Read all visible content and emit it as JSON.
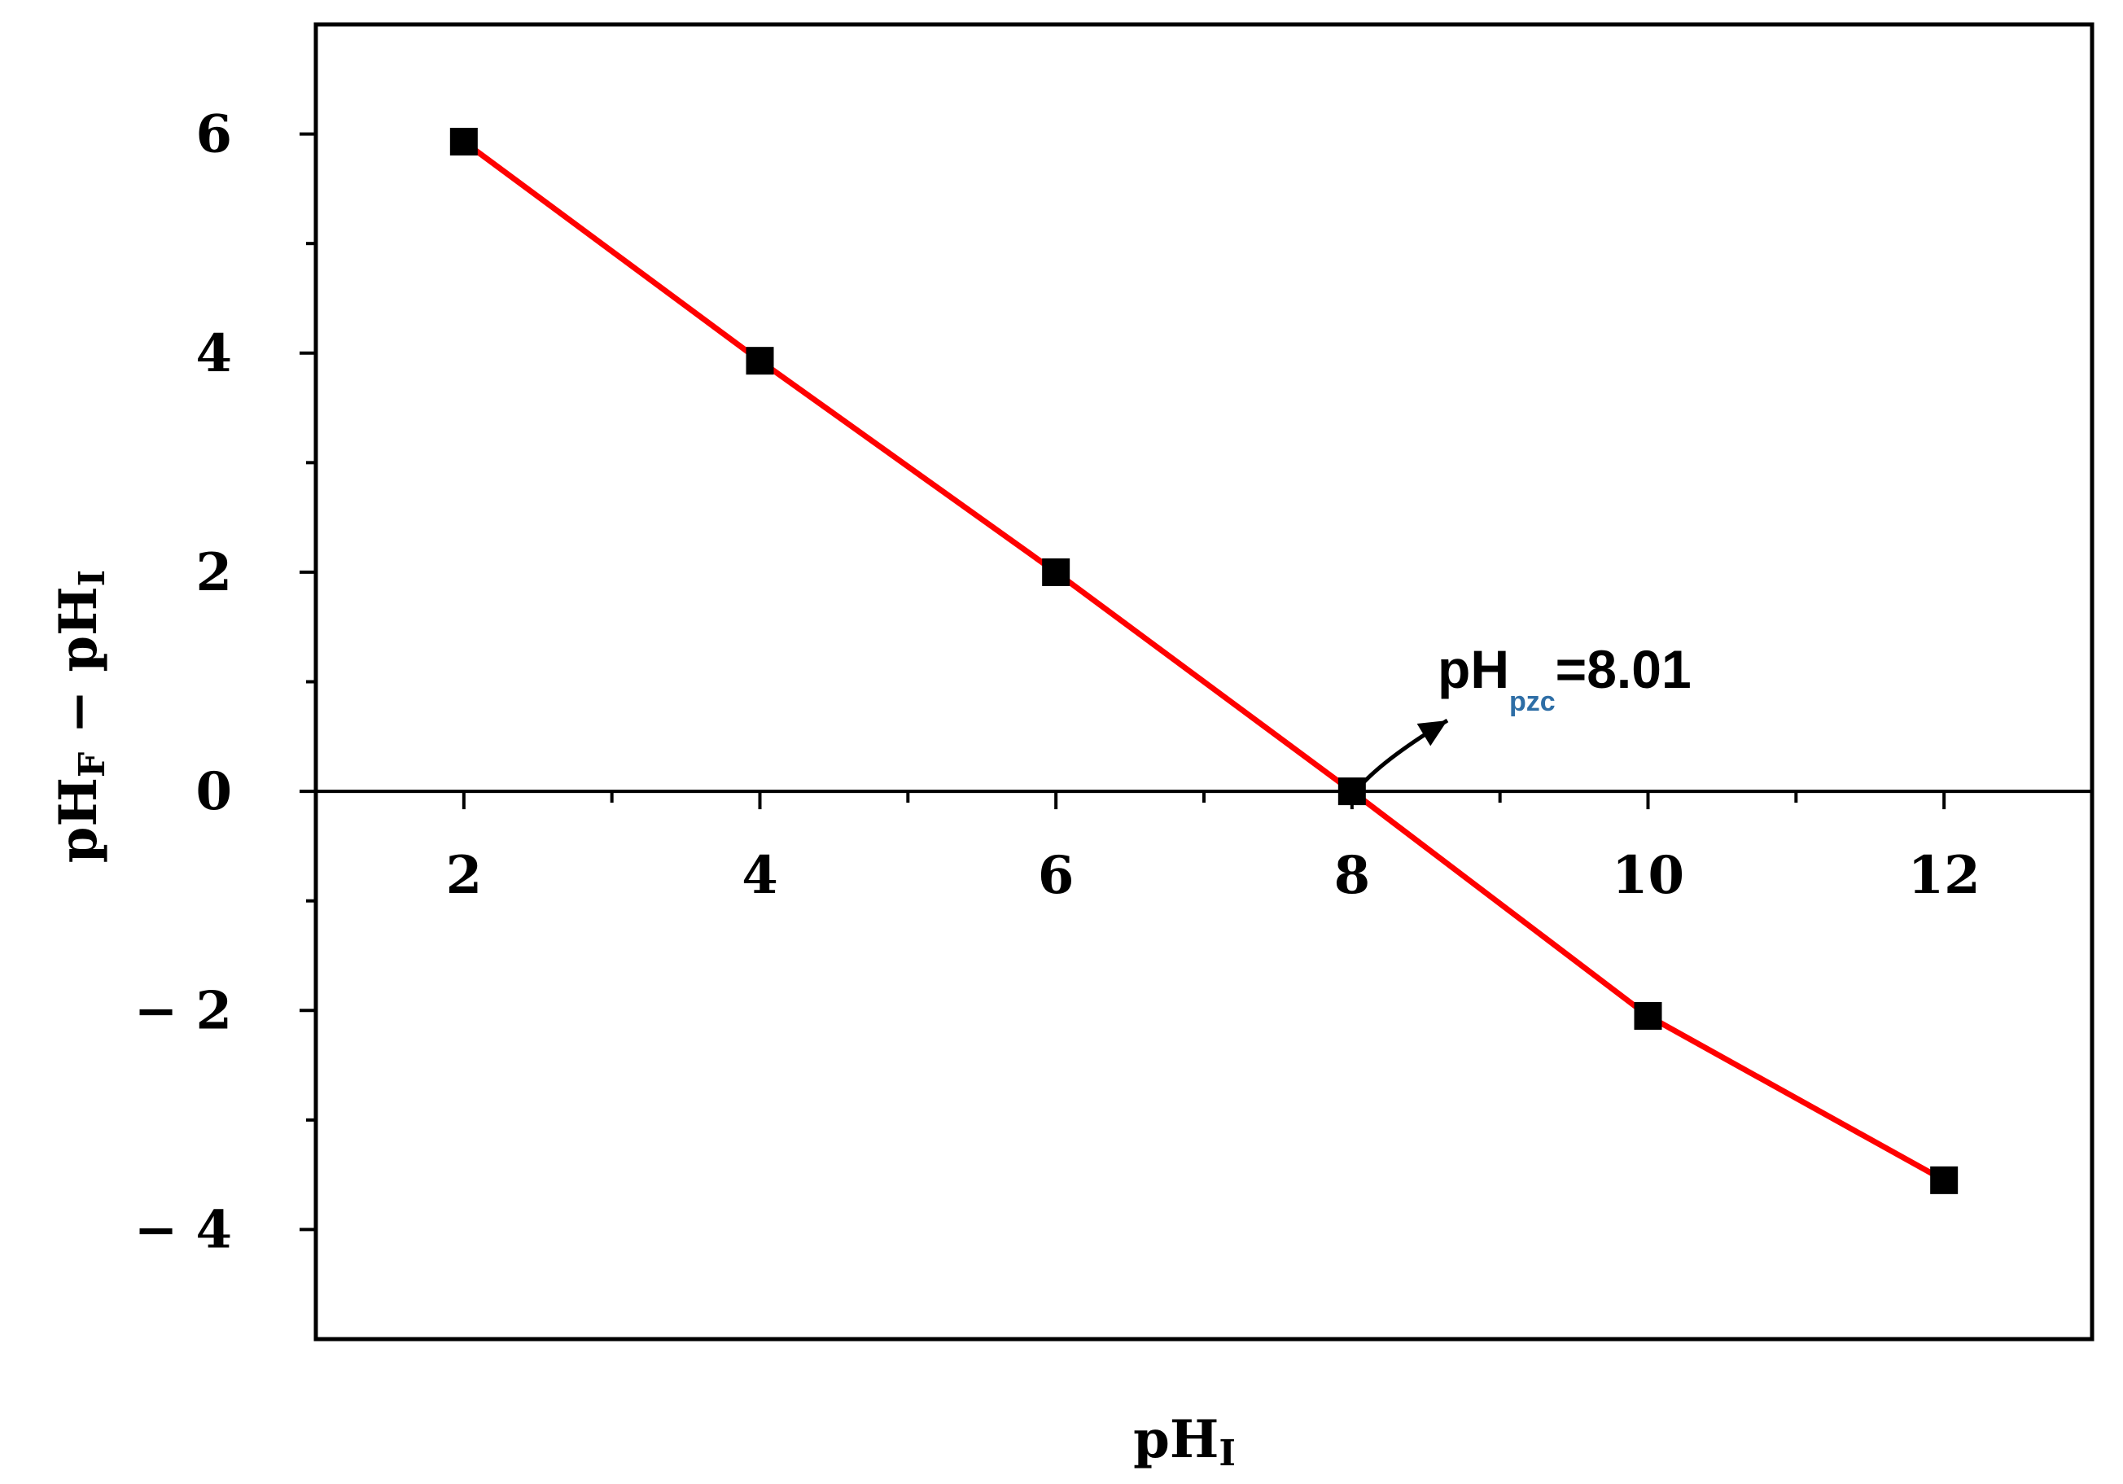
{
  "chart_data": {
    "type": "line",
    "title": "",
    "xlabel": {
      "main": "pH",
      "sub": "I"
    },
    "ylabel": {
      "main": "pH",
      "sub1": "F",
      "mid": " − pH",
      "sub2": "I"
    },
    "xlim": [
      1,
      13
    ],
    "ylim": [
      -5,
      7
    ],
    "x_ticks": [
      {
        "value": 2,
        "label": "2"
      },
      {
        "value": 4,
        "label": "4"
      },
      {
        "value": 6,
        "label": "6"
      },
      {
        "value": 8,
        "label": "8"
      },
      {
        "value": 10,
        "label": "10"
      },
      {
        "value": 12,
        "label": "12"
      }
    ],
    "x_minor_ticks": [
      3,
      5,
      7,
      9,
      11
    ],
    "y_ticks": [
      {
        "value": 6,
        "label": "6"
      },
      {
        "value": 4,
        "label": "4"
      },
      {
        "value": 2,
        "label": "2"
      },
      {
        "value": 0,
        "label": "0"
      },
      {
        "value": -2,
        "label": "− 2"
      },
      {
        "value": -4,
        "label": "− 4"
      }
    ],
    "y_minor_ticks": [
      5,
      3,
      1,
      -1,
      -3
    ],
    "zero_line": true,
    "grid": false,
    "series": [
      {
        "x": [
          2,
          4,
          6,
          8,
          10,
          12
        ],
        "y": [
          5.93,
          3.93,
          2.0,
          0.0,
          -2.05,
          -3.55
        ],
        "line_color": "#ff0000",
        "marker": "square",
        "marker_color": "#000000"
      }
    ],
    "annotation": {
      "main": "pH",
      "sub": "pzc",
      "suffix": "=8.01",
      "point": [
        8,
        0
      ],
      "sub_color": "#2e6ea6"
    }
  }
}
